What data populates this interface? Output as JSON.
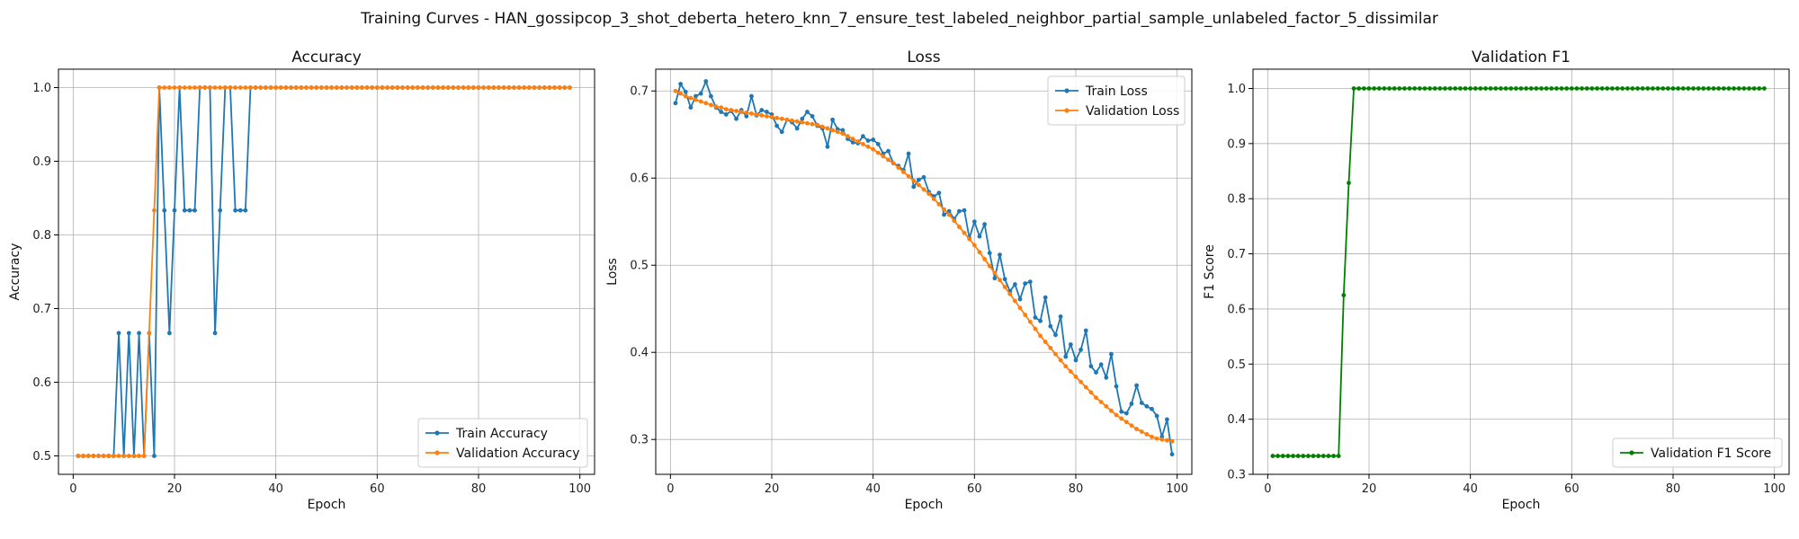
{
  "figure_title": "Training Curves - HAN_gossipcop_3_shot_deberta_hetero_knn_7_ensure_test_labeled_neighbor_partial_sample_unlabeled_factor_5_dissimilar",
  "chart_data": [
    {
      "type": "line",
      "title": "Accuracy",
      "xlabel": "Epoch",
      "ylabel": "Accuracy",
      "xlim": [
        -2.9,
        102.9
      ],
      "ylim": [
        0.475,
        1.025
      ],
      "xticks": [
        0,
        20,
        40,
        60,
        80,
        100
      ],
      "yticks": [
        0.5,
        0.6,
        0.7,
        0.8,
        0.9,
        1.0
      ],
      "ytick_labels": [
        "0.5",
        "0.6",
        "0.7",
        "0.8",
        "0.9",
        "1.0"
      ],
      "grid": true,
      "legend_position": "lower-right",
      "x_start": 1,
      "series": [
        {
          "name": "Train Accuracy",
          "color": "#1f77b4",
          "values": [
            0.5,
            0.5,
            0.5,
            0.5,
            0.5,
            0.5,
            0.5,
            0.5,
            0.6667,
            0.5,
            0.6667,
            0.5,
            0.6667,
            0.5,
            0.6667,
            0.5,
            1.0,
            0.8333,
            0.6667,
            0.8333,
            1.0,
            0.8333,
            0.8333,
            0.8333,
            1.0,
            1.0,
            1.0,
            0.6667,
            0.8333,
            1.0,
            1.0,
            0.8333,
            0.8333,
            0.8333,
            1.0,
            1.0,
            1.0,
            1.0,
            1.0,
            1.0,
            1.0,
            1.0,
            1.0,
            1.0,
            1.0,
            1.0,
            1.0,
            1.0,
            1.0,
            1.0,
            1.0,
            1.0,
            1.0,
            1.0,
            1.0,
            1.0,
            1.0,
            1.0,
            1.0,
            1.0,
            1.0,
            1.0,
            1.0,
            1.0,
            1.0,
            1.0,
            1.0,
            1.0,
            1.0,
            1.0,
            1.0,
            1.0,
            1.0,
            1.0,
            1.0,
            1.0,
            1.0,
            1.0,
            1.0,
            1.0,
            1.0,
            1.0,
            1.0,
            1.0,
            1.0,
            1.0,
            1.0,
            1.0,
            1.0,
            1.0,
            1.0,
            1.0,
            1.0,
            1.0,
            1.0,
            1.0,
            1.0,
            1.0
          ]
        },
        {
          "name": "Validation Accuracy",
          "color": "#ff7f0e",
          "values": [
            0.5,
            0.5,
            0.5,
            0.5,
            0.5,
            0.5,
            0.5,
            0.5,
            0.5,
            0.5,
            0.5,
            0.5,
            0.5,
            0.5,
            0.6667,
            0.8333,
            1.0,
            1.0,
            1.0,
            1.0,
            1.0,
            1.0,
            1.0,
            1.0,
            1.0,
            1.0,
            1.0,
            1.0,
            1.0,
            1.0,
            1.0,
            1.0,
            1.0,
            1.0,
            1.0,
            1.0,
            1.0,
            1.0,
            1.0,
            1.0,
            1.0,
            1.0,
            1.0,
            1.0,
            1.0,
            1.0,
            1.0,
            1.0,
            1.0,
            1.0,
            1.0,
            1.0,
            1.0,
            1.0,
            1.0,
            1.0,
            1.0,
            1.0,
            1.0,
            1.0,
            1.0,
            1.0,
            1.0,
            1.0,
            1.0,
            1.0,
            1.0,
            1.0,
            1.0,
            1.0,
            1.0,
            1.0,
            1.0,
            1.0,
            1.0,
            1.0,
            1.0,
            1.0,
            1.0,
            1.0,
            1.0,
            1.0,
            1.0,
            1.0,
            1.0,
            1.0,
            1.0,
            1.0,
            1.0,
            1.0,
            1.0,
            1.0,
            1.0,
            1.0,
            1.0,
            1.0,
            1.0,
            1.0
          ]
        }
      ]
    },
    {
      "type": "line",
      "title": "Loss",
      "xlabel": "Epoch",
      "ylabel": "Loss",
      "xlim": [
        -2.9,
        102.9
      ],
      "ylim": [
        0.26,
        0.725
      ],
      "xticks": [
        0,
        20,
        40,
        60,
        80,
        100
      ],
      "yticks": [
        0.3,
        0.4,
        0.5,
        0.6,
        0.7
      ],
      "ytick_labels": [
        "0.3",
        "0.4",
        "0.5",
        "0.6",
        "0.7"
      ],
      "grid": true,
      "legend_position": "upper-right",
      "x_start": 1,
      "series": [
        {
          "name": "Train Loss",
          "color": "#1f77b4",
          "values": [
            0.686,
            0.708,
            0.699,
            0.681,
            0.694,
            0.697,
            0.711,
            0.694,
            0.681,
            0.676,
            0.673,
            0.677,
            0.668,
            0.678,
            0.671,
            0.694,
            0.672,
            0.678,
            0.676,
            0.673,
            0.66,
            0.653,
            0.667,
            0.664,
            0.657,
            0.668,
            0.676,
            0.671,
            0.66,
            0.657,
            0.636,
            0.667,
            0.656,
            0.655,
            0.645,
            0.641,
            0.64,
            0.648,
            0.643,
            0.644,
            0.639,
            0.628,
            0.631,
            0.617,
            0.614,
            0.609,
            0.628,
            0.59,
            0.598,
            0.601,
            0.584,
            0.579,
            0.583,
            0.558,
            0.562,
            0.553,
            0.562,
            0.563,
            0.531,
            0.55,
            0.533,
            0.547,
            0.514,
            0.485,
            0.512,
            0.484,
            0.47,
            0.478,
            0.461,
            0.479,
            0.481,
            0.44,
            0.436,
            0.463,
            0.43,
            0.42,
            0.441,
            0.395,
            0.409,
            0.391,
            0.403,
            0.425,
            0.384,
            0.377,
            0.386,
            0.371,
            0.398,
            0.361,
            0.332,
            0.33,
            0.341,
            0.362,
            0.342,
            0.338,
            0.335,
            0.327,
            0.303,
            0.323,
            0.283
          ]
        },
        {
          "name": "Validation Loss",
          "color": "#ff7f0e",
          "values": [
            0.7,
            0.697,
            0.694,
            0.692,
            0.69,
            0.688,
            0.686,
            0.684,
            0.682,
            0.681,
            0.679,
            0.678,
            0.677,
            0.676,
            0.675,
            0.674,
            0.673,
            0.672,
            0.671,
            0.67,
            0.669,
            0.668,
            0.667,
            0.666,
            0.665,
            0.664,
            0.663,
            0.662,
            0.661,
            0.659,
            0.657,
            0.655,
            0.653,
            0.651,
            0.648,
            0.645,
            0.642,
            0.639,
            0.636,
            0.633,
            0.629,
            0.625,
            0.621,
            0.617,
            0.612,
            0.607,
            0.602,
            0.597,
            0.592,
            0.587,
            0.582,
            0.576,
            0.57,
            0.564,
            0.558,
            0.551,
            0.544,
            0.537,
            0.53,
            0.523,
            0.515,
            0.507,
            0.499,
            0.491,
            0.483,
            0.475,
            0.467,
            0.459,
            0.451,
            0.443,
            0.435,
            0.427,
            0.419,
            0.412,
            0.405,
            0.398,
            0.391,
            0.384,
            0.378,
            0.372,
            0.366,
            0.36,
            0.354,
            0.348,
            0.343,
            0.338,
            0.333,
            0.328,
            0.324,
            0.32,
            0.316,
            0.312,
            0.309,
            0.306,
            0.303,
            0.301,
            0.3,
            0.299,
            0.298
          ]
        }
      ]
    },
    {
      "type": "line",
      "title": "Validation F1",
      "xlabel": "Epoch",
      "ylabel": "F1 Score",
      "xlim": [
        -2.9,
        102.9
      ],
      "ylim": [
        0.3,
        1.035
      ],
      "xticks": [
        0,
        20,
        40,
        60,
        80,
        100
      ],
      "yticks": [
        0.3,
        0.4,
        0.5,
        0.6,
        0.7,
        0.8,
        0.9,
        1.0
      ],
      "ytick_labels": [
        "0.3",
        "0.4",
        "0.5",
        "0.6",
        "0.7",
        "0.8",
        "0.9",
        "1.0"
      ],
      "grid": true,
      "legend_position": "lower-right",
      "x_start": 1,
      "series": [
        {
          "name": "Validation F1 Score",
          "color": "#008000",
          "values": [
            0.3333,
            0.3333,
            0.3333,
            0.3333,
            0.3333,
            0.3333,
            0.3333,
            0.3333,
            0.3333,
            0.3333,
            0.3333,
            0.3333,
            0.3333,
            0.3333,
            0.625,
            0.8286,
            1.0,
            1.0,
            1.0,
            1.0,
            1.0,
            1.0,
            1.0,
            1.0,
            1.0,
            1.0,
            1.0,
            1.0,
            1.0,
            1.0,
            1.0,
            1.0,
            1.0,
            1.0,
            1.0,
            1.0,
            1.0,
            1.0,
            1.0,
            1.0,
            1.0,
            1.0,
            1.0,
            1.0,
            1.0,
            1.0,
            1.0,
            1.0,
            1.0,
            1.0,
            1.0,
            1.0,
            1.0,
            1.0,
            1.0,
            1.0,
            1.0,
            1.0,
            1.0,
            1.0,
            1.0,
            1.0,
            1.0,
            1.0,
            1.0,
            1.0,
            1.0,
            1.0,
            1.0,
            1.0,
            1.0,
            1.0,
            1.0,
            1.0,
            1.0,
            1.0,
            1.0,
            1.0,
            1.0,
            1.0,
            1.0,
            1.0,
            1.0,
            1.0,
            1.0,
            1.0,
            1.0,
            1.0,
            1.0,
            1.0,
            1.0,
            1.0,
            1.0,
            1.0,
            1.0,
            1.0,
            1.0,
            1.0
          ]
        }
      ]
    }
  ]
}
